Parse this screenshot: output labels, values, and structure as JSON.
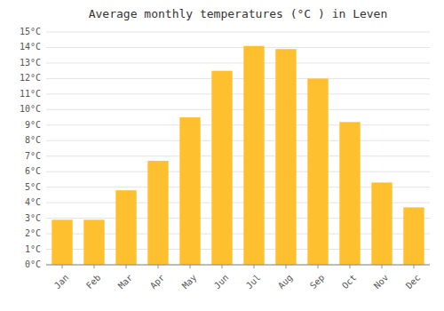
{
  "chart_data": {
    "type": "bar",
    "title": "Average monthly temperatures (°C ) in Leven",
    "categories": [
      "Jan",
      "Feb",
      "Mar",
      "Apr",
      "May",
      "Jun",
      "Jul",
      "Aug",
      "Sep",
      "Oct",
      "Nov",
      "Dec"
    ],
    "values": [
      2.9,
      2.9,
      4.8,
      6.7,
      9.5,
      12.5,
      14.1,
      13.9,
      12.0,
      9.2,
      5.3,
      3.7
    ],
    "color": "#FFC030",
    "ylim": [
      0,
      15
    ],
    "yticks": [
      {
        "value": 0,
        "label": "0°C"
      },
      {
        "value": 1,
        "label": "1°C"
      },
      {
        "value": 2,
        "label": "2°C"
      },
      {
        "value": 3,
        "label": "3°C"
      },
      {
        "value": 4,
        "label": "4°C"
      },
      {
        "value": 5,
        "label": "5°C"
      },
      {
        "value": 6,
        "label": "6°C"
      },
      {
        "value": 7,
        "label": "7°C"
      },
      {
        "value": 8,
        "label": "8°C"
      },
      {
        "value": 9,
        "label": "9°C"
      },
      {
        "value": 10,
        "label": "10°C"
      },
      {
        "value": 11,
        "label": "11°C"
      },
      {
        "value": 12,
        "label": "12°C"
      },
      {
        "value": 13,
        "label": "13°C"
      },
      {
        "value": 14,
        "label": "14°C"
      },
      {
        "value": 15,
        "label": "15°C"
      }
    ],
    "grid": true
  }
}
